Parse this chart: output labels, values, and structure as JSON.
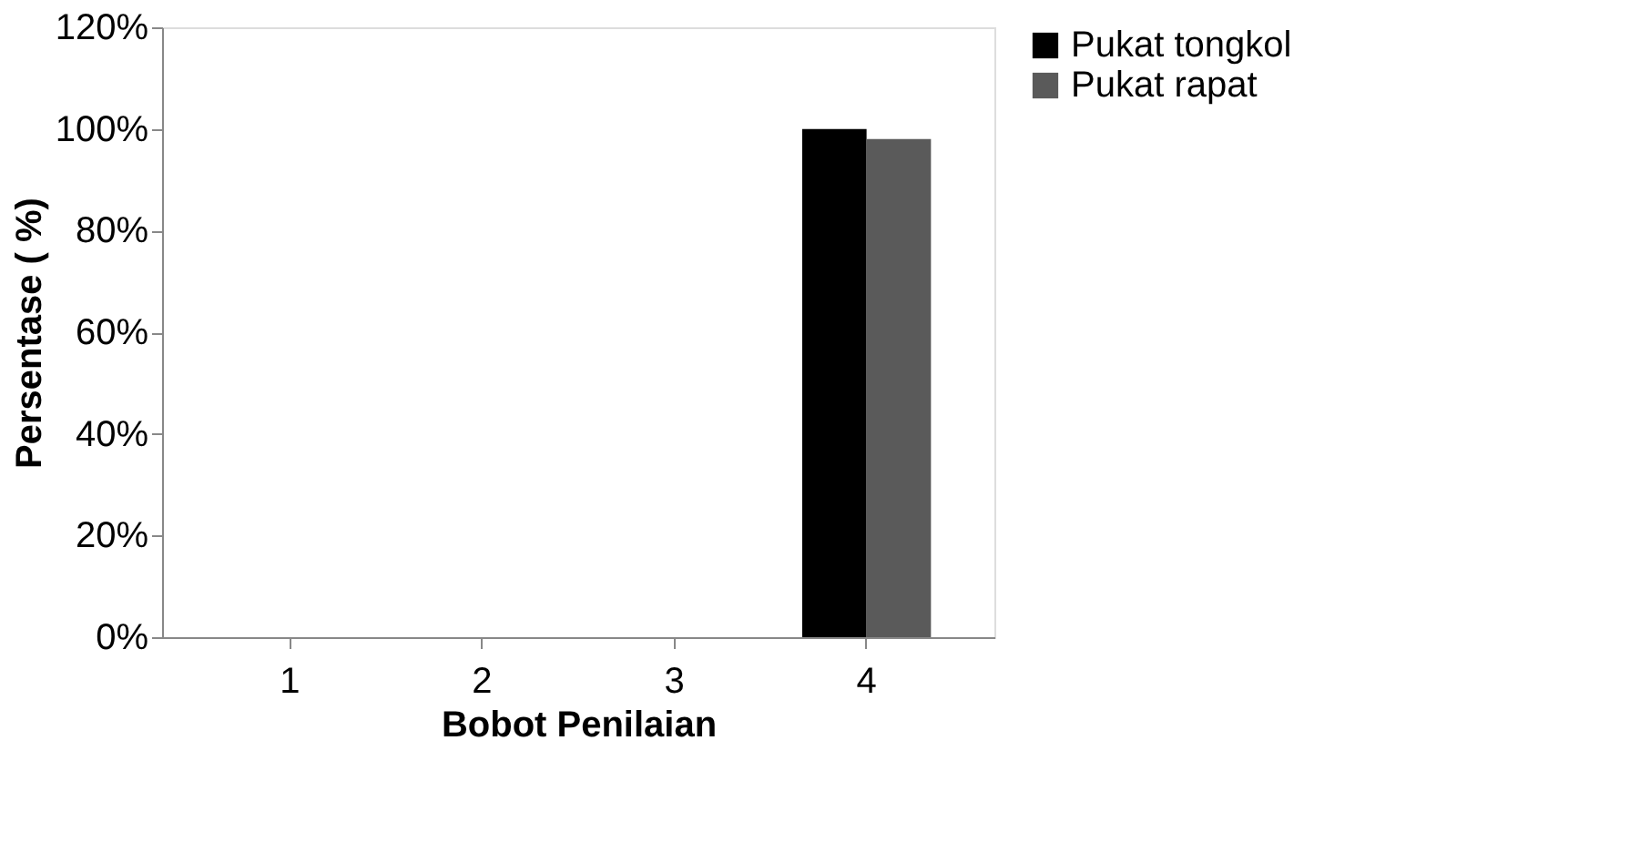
{
  "chart_data": {
    "type": "bar",
    "xlabel": "Bobot Penilaian",
    "ylabel": "Persentase ( %)",
    "categories": [
      "1",
      "2",
      "3",
      "4"
    ],
    "series": [
      {
        "name": "Pukat tongkol",
        "color": "#000000",
        "values": [
          0,
          0,
          0,
          100
        ]
      },
      {
        "name": "Pukat rapat",
        "color": "#5a5a5a",
        "values": [
          0,
          0,
          0,
          98
        ]
      }
    ],
    "ylim": [
      0,
      120
    ],
    "yticks": [
      {
        "value": 0,
        "label": "0%"
      },
      {
        "value": 20,
        "label": "20%"
      },
      {
        "value": 40,
        "label": "40%"
      },
      {
        "value": 60,
        "label": "60%"
      },
      {
        "value": 80,
        "label": "80%"
      },
      {
        "value": 100,
        "label": "100%"
      },
      {
        "value": 120,
        "label": "120%"
      }
    ],
    "grid": false,
    "legend": "right"
  }
}
